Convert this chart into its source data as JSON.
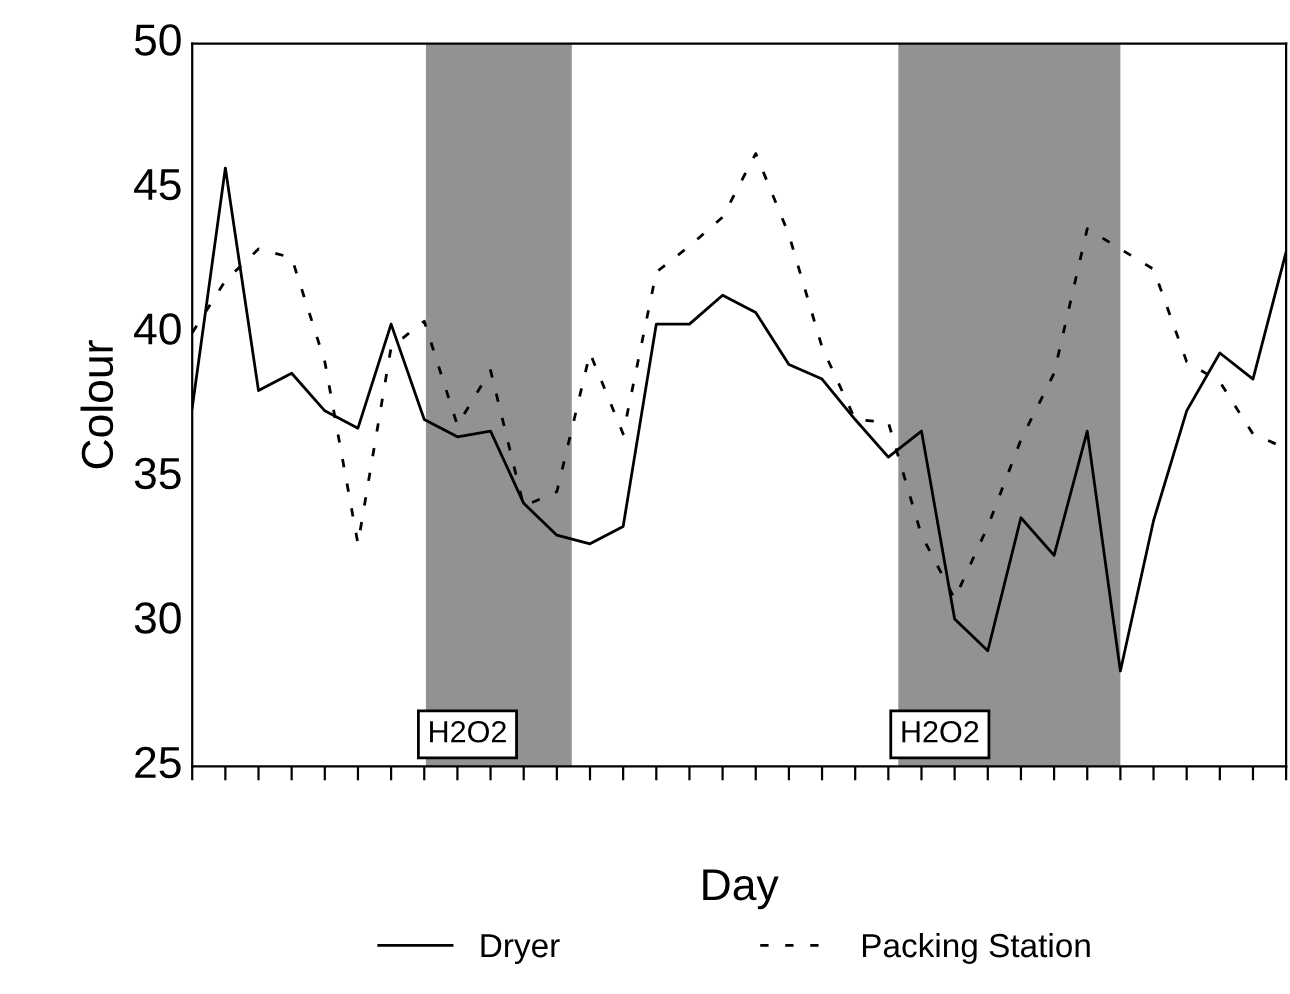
{
  "chart_data": {
    "type": "line",
    "xlabel": "Day",
    "ylabel": "Colour",
    "categories": [
      null,
      null,
      null,
      null,
      null,
      null,
      null,
      null,
      null,
      null,
      null,
      null,
      null,
      null,
      null,
      null,
      null,
      null,
      null,
      null,
      null,
      null,
      null,
      null,
      null,
      null,
      null,
      null,
      null,
      null,
      null,
      null,
      null,
      null
    ],
    "series": [
      {
        "name": "Dryer",
        "color": "#000000",
        "line_style": "solid",
        "values": [
          37.4,
          45.7,
          38.0,
          38.6,
          37.3,
          36.7,
          40.3,
          37.0,
          36.4,
          36.6,
          34.1,
          33.0,
          32.7,
          33.3,
          40.3,
          40.3,
          41.3,
          40.7,
          38.9,
          38.4,
          37.0,
          35.7,
          36.6,
          30.1,
          29.0,
          33.6,
          32.3,
          36.6,
          28.3,
          33.5,
          37.3,
          39.3,
          38.4,
          42.8
        ]
      },
      {
        "name": "Packing Station",
        "color": "#000000",
        "line_style": "dashed",
        "values": [
          40.0,
          41.8,
          42.9,
          42.6,
          39.0,
          32.7,
          39.5,
          40.4,
          36.8,
          38.7,
          34.0,
          34.5,
          39.3,
          36.5,
          42.1,
          43.0,
          44.0,
          46.2,
          43.4,
          39.5,
          37.0,
          36.9,
          33.0,
          30.8,
          33.3,
          36.3,
          38.6,
          43.6,
          42.9,
          42.2,
          39.0,
          38.3,
          36.5,
          36.0
        ]
      }
    ],
    "ylim": [
      25,
      50
    ],
    "yticks": [
      25,
      30,
      35,
      40,
      45,
      50
    ],
    "annotations": [
      "H2O2",
      "H2O2"
    ],
    "grid": false,
    "legend": "bottom"
  }
}
